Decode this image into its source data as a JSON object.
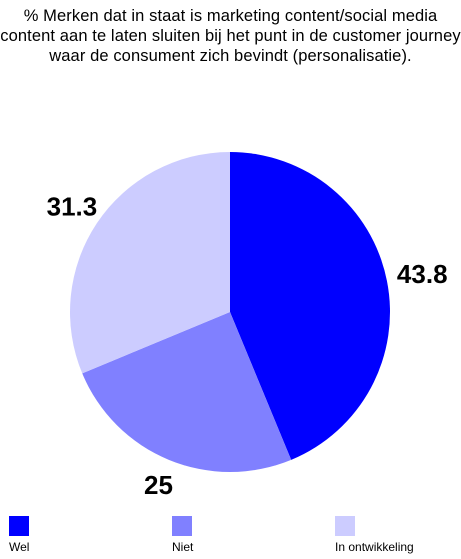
{
  "chart_data": {
    "type": "pie",
    "title": "% Merken dat in staat is marketing content/social media content aan te laten sluiten bij het punt in de customer journey waar de consument zich bevindt (personalisatie).",
    "categories": [
      "Wel",
      "Niet",
      "In ontwikkeling"
    ],
    "values": [
      43.8,
      25,
      31.3
    ],
    "data_labels": [
      "43.8",
      "25",
      "31.3"
    ],
    "colors": [
      "#0000ff",
      "#8080ff",
      "#ccccff"
    ],
    "start_angle": "12 o'clock",
    "direction": "clockwise",
    "legend": "bottom"
  }
}
